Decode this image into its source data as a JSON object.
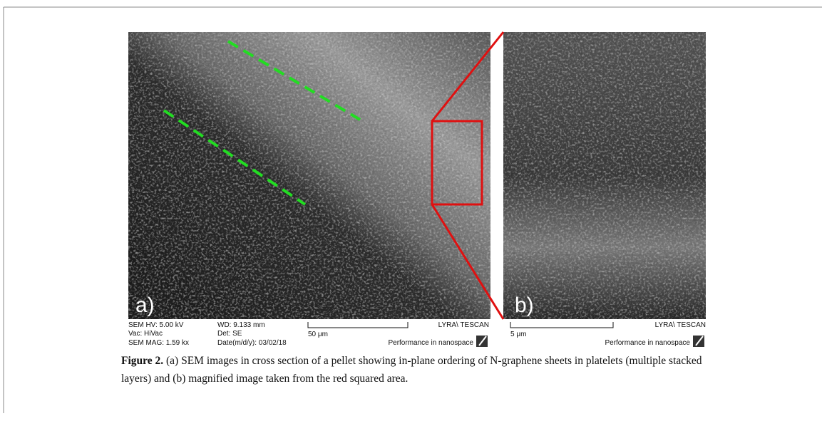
{
  "figure": {
    "panel_a": {
      "label": "a)",
      "hv": "SEM HV: 5.00 kV",
      "wd": "WD: 9.133 mm",
      "vac": "Vac: HiVac",
      "det": "Det: SE",
      "mag": "SEM MAG: 1.59 kx",
      "date": "Date(m/d/y): 03/02/18",
      "scale": "50 μm",
      "brand": "LYRA\\ TESCAN",
      "slogan": "Performance in nanospace"
    },
    "panel_b": {
      "label": "b)",
      "scale": "5 μm",
      "brand": "LYRA\\ TESCAN",
      "slogan": "Performance in nanospace"
    },
    "caption": {
      "label": "Figure 2.",
      "text": " (a) SEM images in cross section of a pellet showing in-plane ordering of N-graphene sheets in platelets (multiple stacked layers) and (b) magnified image taken from the red squared area."
    }
  }
}
